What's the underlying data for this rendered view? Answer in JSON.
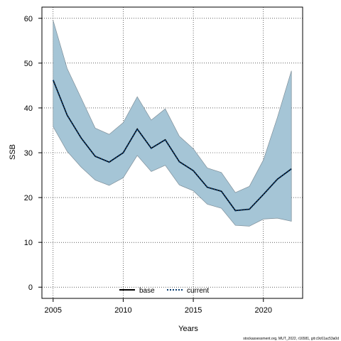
{
  "chart_data": {
    "type": "area",
    "xlabel": "Years",
    "ylabel": "SSB",
    "xlim": [
      2004.2,
      2022.8
    ],
    "ylim": [
      -2.5,
      62.5
    ],
    "xticks": [
      2005,
      2010,
      2015,
      2020
    ],
    "yticks": [
      0,
      10,
      20,
      30,
      40,
      50,
      60
    ],
    "grid": true,
    "legend_position": "bottom-center",
    "x": [
      2005,
      2006,
      2007,
      2008,
      2009,
      2010,
      2011,
      2012,
      2013,
      2014,
      2015,
      2016,
      2017,
      2018,
      2019,
      2020,
      2021,
      2022
    ],
    "band": {
      "lower": [
        35.8,
        30.3,
        26.8,
        23.9,
        22.7,
        24.4,
        29.4,
        25.8,
        27.2,
        22.8,
        21.5,
        18.5,
        17.6,
        13.8,
        13.6,
        15.2,
        15.4,
        14.7
      ],
      "upper": [
        59.5,
        48.8,
        42.2,
        35.5,
        34.1,
        36.7,
        42.5,
        37.3,
        39.8,
        33.7,
        30.9,
        26.6,
        25.6,
        21.1,
        22.5,
        28.4,
        37.9,
        48.3
      ],
      "color": "#a5c5d6"
    },
    "series": [
      {
        "name": "base",
        "color": "#000000",
        "dash": "solid",
        "values": [
          46.2,
          38.4,
          33.3,
          29.2,
          27.9,
          30.0,
          35.3,
          31.0,
          32.9,
          28.0,
          26.0,
          22.3,
          21.4,
          17.1,
          17.4,
          20.7,
          24.1,
          26.4
        ]
      },
      {
        "name": "current",
        "color": "#0a3c6e",
        "dash": "dotted",
        "values": [
          46.2,
          38.4,
          33.3,
          29.2,
          27.9,
          30.0,
          35.3,
          31.0,
          32.9,
          28.0,
          26.0,
          22.3,
          21.4,
          17.1,
          17.4,
          20.7,
          24.1,
          26.4
        ]
      }
    ],
    "footnote": "stockassessment.org, MUT_2022, r16581, git:c9c61ac53a0d"
  }
}
